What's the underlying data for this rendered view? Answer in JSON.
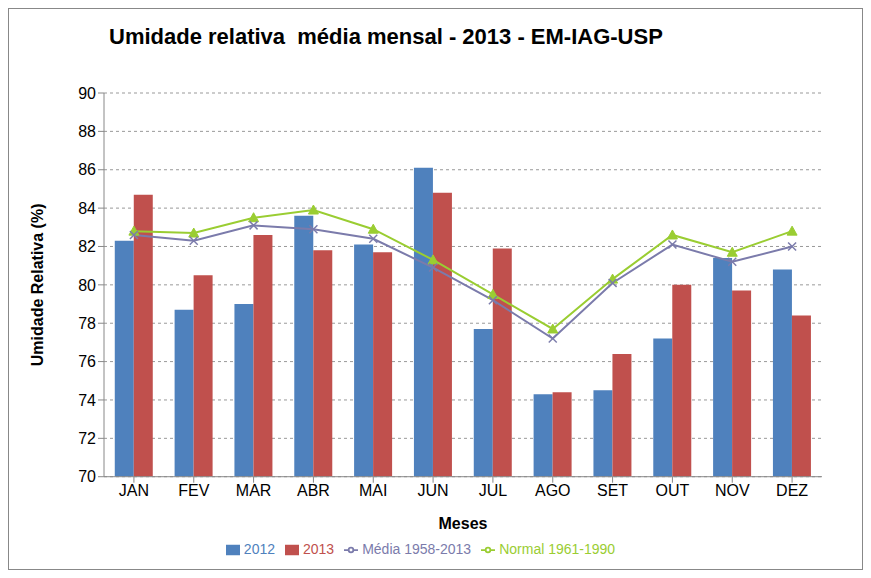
{
  "chart_data": {
    "type": "bar",
    "title": "Umidade relativa  média mensal - 2013 - EM-IAG-USP",
    "xlabel": "Meses",
    "ylabel": "Umidade Relativa (%)",
    "categories": [
      "JAN",
      "FEV",
      "MAR",
      "ABR",
      "MAI",
      "JUN",
      "JUL",
      "AGO",
      "SET",
      "OUT",
      "NOV",
      "DEZ"
    ],
    "series": [
      {
        "name": "2012",
        "type": "bar",
        "color": "#4f81bd",
        "values": [
          82.3,
          78.7,
          79.0,
          83.6,
          82.1,
          86.1,
          77.7,
          74.3,
          74.5,
          77.2,
          81.4,
          80.8
        ]
      },
      {
        "name": "2013",
        "type": "bar",
        "color": "#c0504d",
        "values": [
          84.7,
          80.5,
          82.6,
          81.8,
          81.7,
          84.8,
          81.9,
          74.4,
          76.4,
          80.0,
          79.7,
          78.4
        ]
      },
      {
        "name": "Normal 1961-1990",
        "type": "line",
        "color": "#9acd32",
        "marker": "triangle",
        "values": [
          82.8,
          82.7,
          83.5,
          83.9,
          82.9,
          81.3,
          79.5,
          77.7,
          80.3,
          82.6,
          81.7,
          82.8
        ]
      },
      {
        "name": "Média 1958-2013",
        "type": "line",
        "color": "#7b7bab",
        "marker": "x",
        "values": [
          82.6,
          82.3,
          83.1,
          82.9,
          82.4,
          80.9,
          79.2,
          77.2,
          80.1,
          82.1,
          81.2,
          82.0
        ]
      }
    ],
    "ylim": [
      70,
      90
    ],
    "yticks": [
      70,
      72,
      74,
      76,
      78,
      80,
      82,
      84,
      86,
      88,
      90
    ],
    "grid": true,
    "legend": "bottom"
  }
}
